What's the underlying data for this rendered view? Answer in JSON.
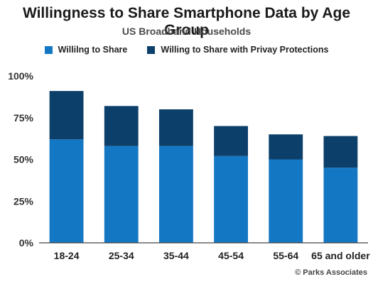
{
  "chart_data": {
    "type": "bar",
    "stacked": true,
    "title": "Willingness to Share Smartphone Data by Age Group",
    "subtitle": "US Broadband Households",
    "categories": [
      "18-24",
      "25-34",
      "35-44",
      "45-54",
      "55-64",
      "65 and older"
    ],
    "series": [
      {
        "name": "Willilng to Share",
        "color": "#1477c4",
        "values": [
          62,
          58,
          58,
          52,
          50,
          45
        ]
      },
      {
        "name": "Willing to Share with Privay Protections",
        "color": "#0d3f6b",
        "values": [
          29,
          24,
          22,
          18,
          15,
          19
        ]
      }
    ],
    "ylim": [
      0,
      100
    ],
    "yticks": [
      "0%",
      "25%",
      "50%",
      "75%",
      "100%"
    ],
    "grid": false,
    "legend_position": "top",
    "source": "© Parks Associates"
  }
}
